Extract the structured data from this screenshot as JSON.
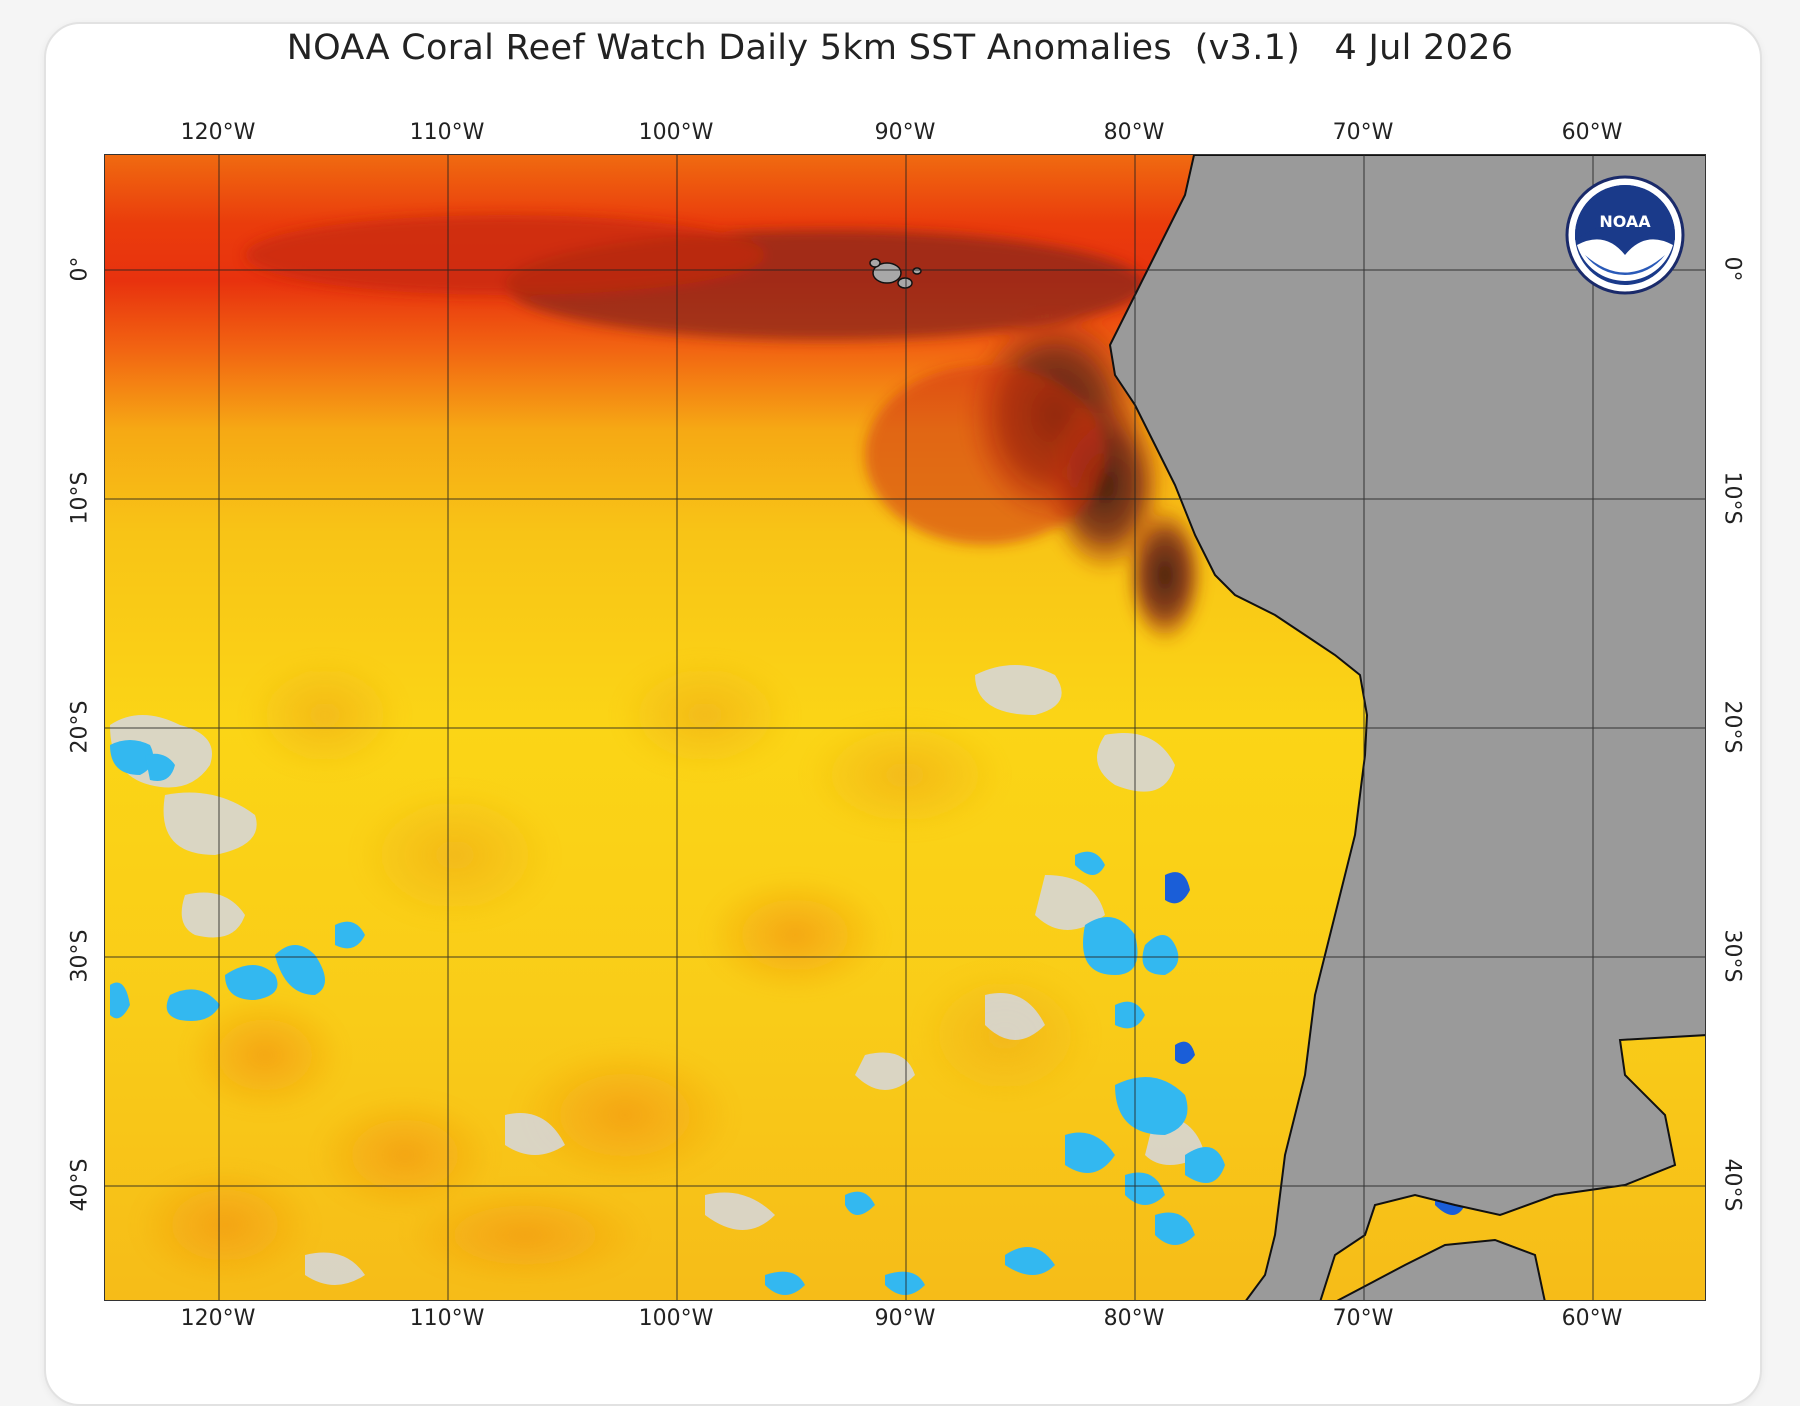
{
  "title": "NOAA Coral Reef Watch Daily 5km SST Anomalies  (v3.1)   4 Jul 2026",
  "map": {
    "lon_range": [
      -125,
      -55
    ],
    "lat_range": [
      -45,
      5
    ],
    "lon_ticks": [
      "120°W",
      "110°W",
      "100°W",
      "90°W",
      "80°W",
      "70°W",
      "60°W"
    ],
    "lat_ticks": [
      "0°",
      "10°S",
      "20°S",
      "30°S",
      "40°S"
    ],
    "land_color": "#9a9a9a",
    "grid_color": "#222222",
    "palette": {
      "extreme_warm": "#3d1a10",
      "very_warm": "#7a2a1a",
      "warm_red": "#e8320e",
      "warm_orange": "#f47a12",
      "warm_amber": "#f6a914",
      "mild_yellow": "#fbd516",
      "neutral": "#d6d6d6",
      "cool_cyan": "#33b8f0",
      "cold_blue": "#1a5ed8"
    }
  },
  "logo": {
    "text": "NOAA",
    "icon": "noaa-logo-icon"
  }
}
